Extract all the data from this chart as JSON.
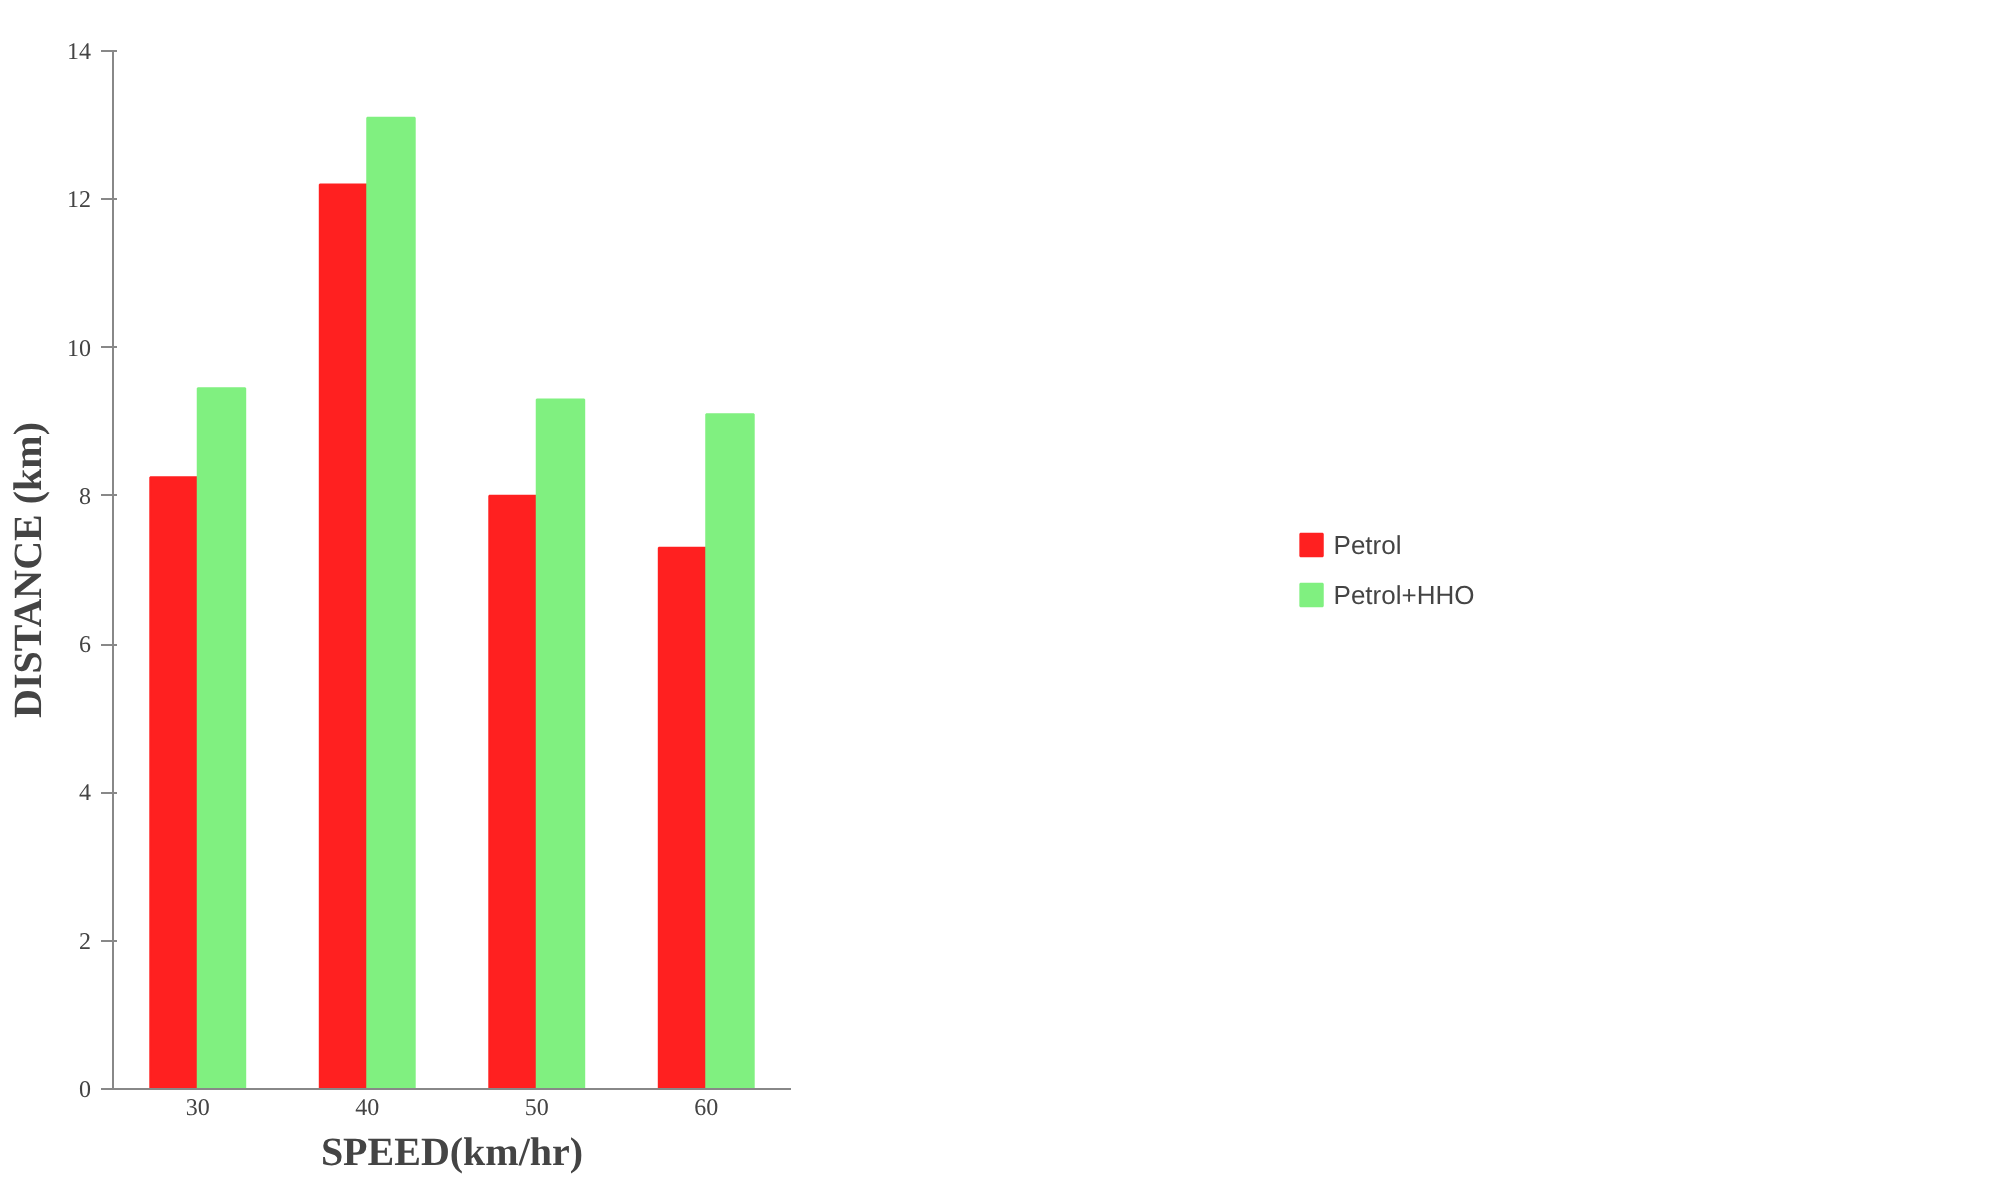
{
  "chart_data": {
    "type": "bar",
    "xlabel": "SPEED(km/hr)",
    "ylabel": "DISTANCE (km)",
    "categories": [
      "30",
      "40",
      "50",
      "60"
    ],
    "series": [
      {
        "name": "Petrol",
        "color": "#ff2020",
        "values": [
          8.25,
          12.2,
          8.0,
          7.3
        ]
      },
      {
        "name": "Petrol+HHO",
        "color": "#80f080",
        "values": [
          9.45,
          13.1,
          9.3,
          9.1
        ]
      }
    ],
    "ylim": [
      0,
      14
    ],
    "yticks": [
      0,
      2,
      4,
      6,
      8,
      10,
      12,
      14
    ],
    "grid": false,
    "legend": "right"
  }
}
